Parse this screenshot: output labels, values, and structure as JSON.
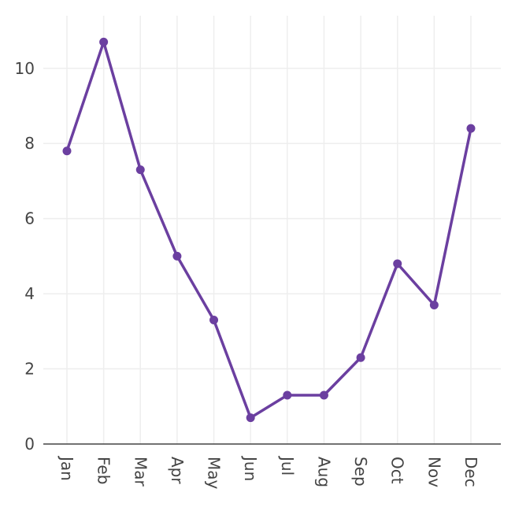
{
  "chart_data": {
    "type": "line",
    "categories": [
      "Jan",
      "Feb",
      "Mar",
      "Apr",
      "May",
      "Jun",
      "Jul",
      "Aug",
      "Sep",
      "Oct",
      "Nov",
      "Dec"
    ],
    "series": [
      {
        "values": [
          7.8,
          10.7,
          7.3,
          5.0,
          3.3,
          0.7,
          1.3,
          1.3,
          2.3,
          4.8,
          3.7,
          8.4
        ]
      }
    ],
    "y_ticks": [
      "0",
      "2",
      "4",
      "6",
      "8",
      "10"
    ],
    "ylim": [
      0,
      11.4
    ],
    "grid": true,
    "colors": {
      "line": "#6b3fa0",
      "grid": "#eeeeee",
      "axis": "#444444",
      "text": "#444444"
    }
  }
}
